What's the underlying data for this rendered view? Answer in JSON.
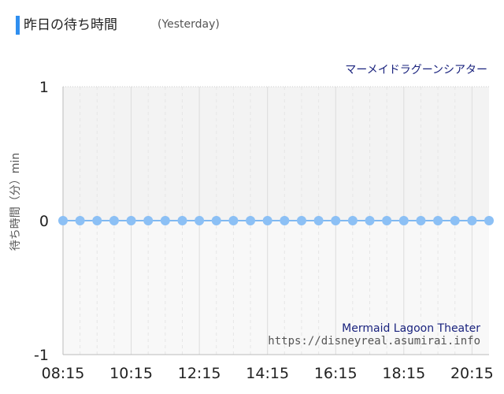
{
  "header": {
    "title": "昨日の待ち時間",
    "subtitle": "(Yesterday)"
  },
  "colors": {
    "accent": "#2f8ff0",
    "marker": "#8cc0f5",
    "line": "#5aa6f0",
    "attraction_text": "#1a237e"
  },
  "chart_data": {
    "type": "line",
    "attraction_jp": "マーメイドラグーンシアター",
    "attraction_en": "Mermaid Lagoon Theater",
    "source_url": "https://disneyreal.asumirai.info",
    "ylabel": "待ち時間（分）min",
    "ylim": [
      -1,
      1
    ],
    "yticks": [
      1,
      0,
      -1
    ],
    "xlim": [
      "08:15",
      "20:45"
    ],
    "xtick_labels": [
      "08:15",
      "10:15",
      "12:15",
      "14:15",
      "16:15",
      "18:15",
      "20:15"
    ],
    "grid": true,
    "series": [
      {
        "x": [
          "08:15",
          "08:45",
          "09:15",
          "09:45",
          "10:15",
          "10:45",
          "11:15",
          "11:45",
          "12:15",
          "12:45",
          "13:15",
          "13:45",
          "14:15",
          "14:45",
          "15:15",
          "15:45",
          "16:15",
          "16:45",
          "17:15",
          "17:45",
          "18:15",
          "18:45",
          "19:15",
          "19:45",
          "20:15",
          "20:45"
        ],
        "values": [
          0,
          0,
          0,
          0,
          0,
          0,
          0,
          0,
          0,
          0,
          0,
          0,
          0,
          0,
          0,
          0,
          0,
          0,
          0,
          0,
          0,
          0,
          0,
          0,
          0,
          0
        ]
      }
    ]
  }
}
